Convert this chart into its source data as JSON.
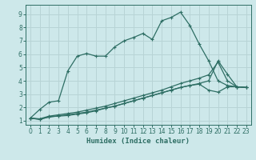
{
  "xlabel": "Humidex (Indice chaleur)",
  "background_color": "#cde8ea",
  "grid_color": "#b8d4d6",
  "line_color": "#2e6e64",
  "xlim": [
    -0.5,
    23.5
  ],
  "ylim": [
    0.7,
    9.7
  ],
  "xticks": [
    0,
    1,
    2,
    3,
    4,
    5,
    6,
    7,
    8,
    9,
    10,
    11,
    12,
    13,
    14,
    15,
    16,
    17,
    18,
    19,
    20,
    21,
    22,
    23
  ],
  "yticks": [
    1,
    2,
    3,
    4,
    5,
    6,
    7,
    8,
    9
  ],
  "line1_x": [
    0,
    1,
    2,
    3,
    4,
    5,
    6,
    7,
    8,
    9,
    10,
    11,
    12,
    13,
    14,
    15,
    16,
    17,
    18,
    19,
    20,
    21,
    22,
    23
  ],
  "line1_y": [
    1.2,
    1.85,
    2.4,
    2.5,
    4.75,
    5.85,
    6.05,
    5.85,
    5.85,
    6.55,
    7.0,
    7.25,
    7.55,
    7.1,
    8.5,
    8.75,
    9.15,
    8.15,
    6.75,
    5.5,
    4.0,
    3.65,
    3.55,
    3.5
  ],
  "line2_x": [
    0,
    1,
    2,
    3,
    4,
    5,
    6,
    7,
    8,
    9,
    10,
    11,
    12,
    13,
    14,
    15,
    16,
    17,
    18,
    19,
    20,
    21,
    22,
    23
  ],
  "line2_y": [
    1.2,
    1.1,
    1.3,
    1.35,
    1.4,
    1.5,
    1.6,
    1.75,
    1.95,
    2.1,
    2.3,
    2.5,
    2.7,
    2.9,
    3.1,
    3.3,
    3.5,
    3.65,
    3.75,
    3.3,
    3.15,
    3.55,
    3.55,
    3.5
  ],
  "line3_x": [
    0,
    1,
    2,
    3,
    4,
    5,
    6,
    7,
    8,
    9,
    10,
    11,
    12,
    13,
    14,
    15,
    16,
    17,
    18,
    19,
    20,
    21,
    22,
    23
  ],
  "line3_y": [
    1.2,
    1.15,
    1.35,
    1.45,
    1.55,
    1.65,
    1.8,
    1.95,
    2.1,
    2.3,
    2.5,
    2.7,
    2.9,
    3.1,
    3.3,
    3.55,
    3.8,
    4.0,
    4.2,
    4.45,
    5.4,
    4.0,
    3.55,
    3.5
  ],
  "line4_x": [
    0,
    1,
    2,
    3,
    4,
    5,
    6,
    7,
    8,
    9,
    10,
    11,
    12,
    13,
    14,
    15,
    16,
    17,
    18,
    19,
    20,
    21,
    22,
    23
  ],
  "line4_y": [
    1.2,
    1.12,
    1.28,
    1.38,
    1.45,
    1.55,
    1.65,
    1.8,
    1.95,
    2.1,
    2.3,
    2.5,
    2.7,
    2.9,
    3.1,
    3.3,
    3.5,
    3.65,
    3.8,
    4.0,
    5.5,
    4.5,
    3.55,
    3.5
  ]
}
